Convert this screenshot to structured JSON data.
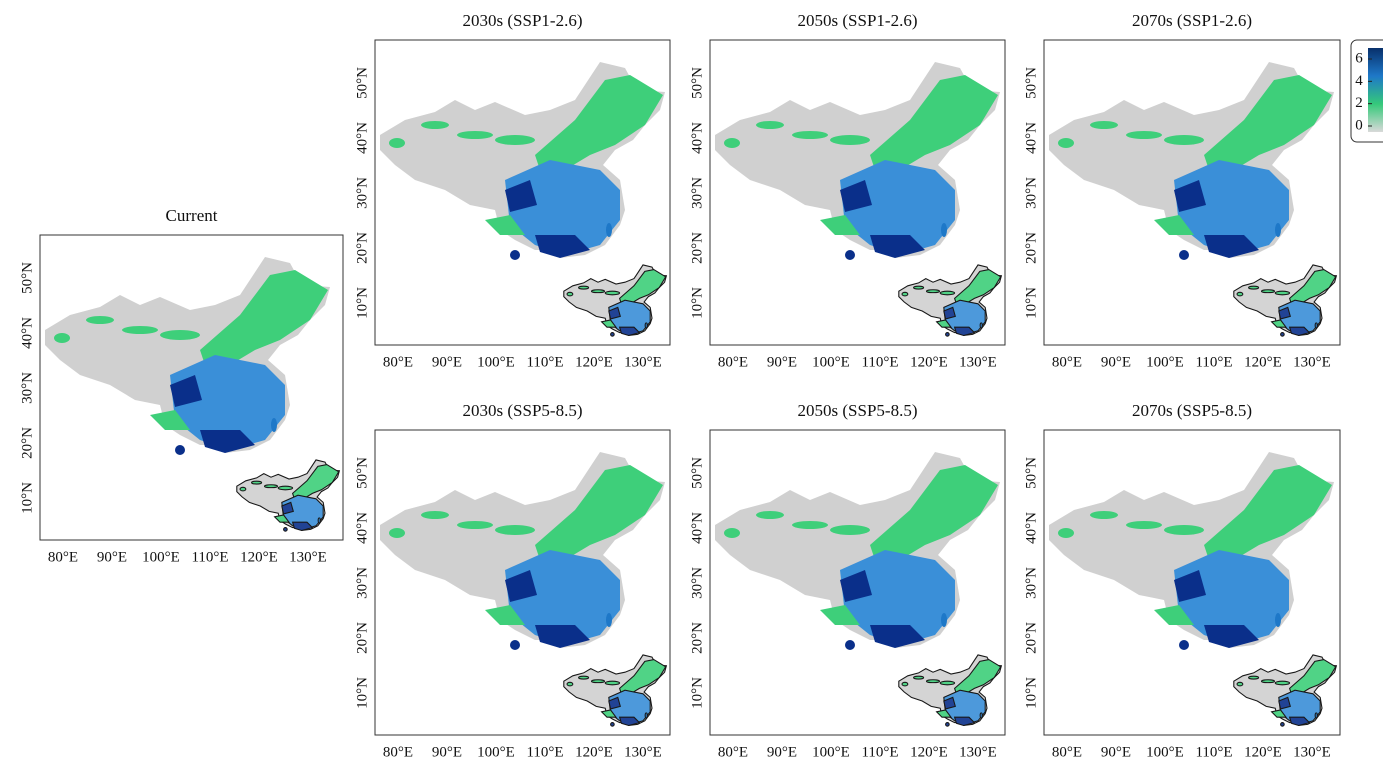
{
  "panels": [
    {
      "title": "Current"
    },
    {
      "title": "2030s (SSP1-2.6)"
    },
    {
      "title": "2050s (SSP1-2.6)"
    },
    {
      "title": "2070s (SSP1-2.6)"
    },
    {
      "title": "2030s (SSP5-8.5)"
    },
    {
      "title": "2050s (SSP5-8.5)"
    },
    {
      "title": "2070s (SSP5-8.5)"
    }
  ],
  "lat_labels": [
    "50°N",
    "40°N",
    "30°N",
    "20°N",
    "10°N"
  ],
  "lon_labels": [
    "80°E",
    "90°E",
    "100°E",
    "110°E",
    "120°E",
    "130°E"
  ],
  "legend": {
    "ticks": [
      0,
      2,
      4,
      6
    ],
    "colors": [
      "#d9d9d9",
      "#35c97a",
      "#1e78c8",
      "#08306b"
    ]
  }
}
